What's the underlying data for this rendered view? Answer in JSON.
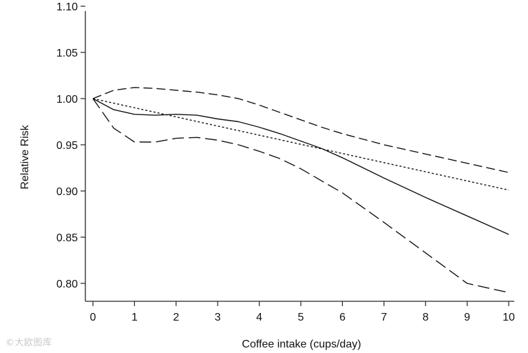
{
  "chart_data": {
    "type": "line",
    "title": "",
    "xlabel": "Coffee intake (cups/day)",
    "ylabel": "Relative Risk",
    "xlim": [
      0,
      10
    ],
    "ylim": [
      0.785,
      1.115
    ],
    "x_ticks": [
      0,
      1,
      2,
      3,
      4,
      5,
      6,
      7,
      8,
      9,
      10
    ],
    "y_ticks": [
      0.8,
      0.85,
      0.9,
      0.95,
      1.0,
      1.05,
      1.1
    ],
    "y_tick_labels": [
      "0.80",
      "0.85",
      "0.90",
      "0.95",
      "1.00",
      "1.05",
      "1.10"
    ],
    "grid": false,
    "legend": "none",
    "series": [
      {
        "style": "solid",
        "x": [
          0,
          0.5,
          1,
          1.5,
          2,
          2.5,
          3,
          3.5,
          4,
          4.5,
          5,
          5.5,
          6,
          7,
          8,
          9,
          10
        ],
        "y": [
          1.0,
          0.988,
          0.983,
          0.982,
          0.983,
          0.982,
          0.978,
          0.975,
          0.969,
          0.962,
          0.954,
          0.946,
          0.936,
          0.914,
          0.893,
          0.873,
          0.853
        ]
      },
      {
        "style": "dotted",
        "x": [
          0,
          10
        ],
        "y": [
          1.0,
          0.901
        ]
      },
      {
        "style": "dashed",
        "x": [
          0,
          0.5,
          1,
          1.5,
          2,
          2.5,
          3,
          3.5,
          4,
          4.5,
          5,
          5.5,
          6,
          7,
          8,
          9,
          10
        ],
        "y": [
          1.0,
          1.009,
          1.012,
          1.011,
          1.009,
          1.007,
          1.004,
          1.0,
          0.993,
          0.985,
          0.977,
          0.969,
          0.962,
          0.95,
          0.94,
          0.93,
          0.92
        ]
      },
      {
        "style": "long-dashed",
        "x": [
          0,
          0.5,
          1,
          1.5,
          2,
          2.5,
          3,
          3.5,
          4,
          4.5,
          5,
          5.5,
          6,
          7,
          8,
          9,
          10
        ],
        "y": [
          1.0,
          0.968,
          0.953,
          0.953,
          0.957,
          0.958,
          0.955,
          0.95,
          0.943,
          0.935,
          0.924,
          0.911,
          0.898,
          0.866,
          0.833,
          0.8,
          0.79
        ]
      }
    ]
  },
  "watermark": "©大欧图库"
}
